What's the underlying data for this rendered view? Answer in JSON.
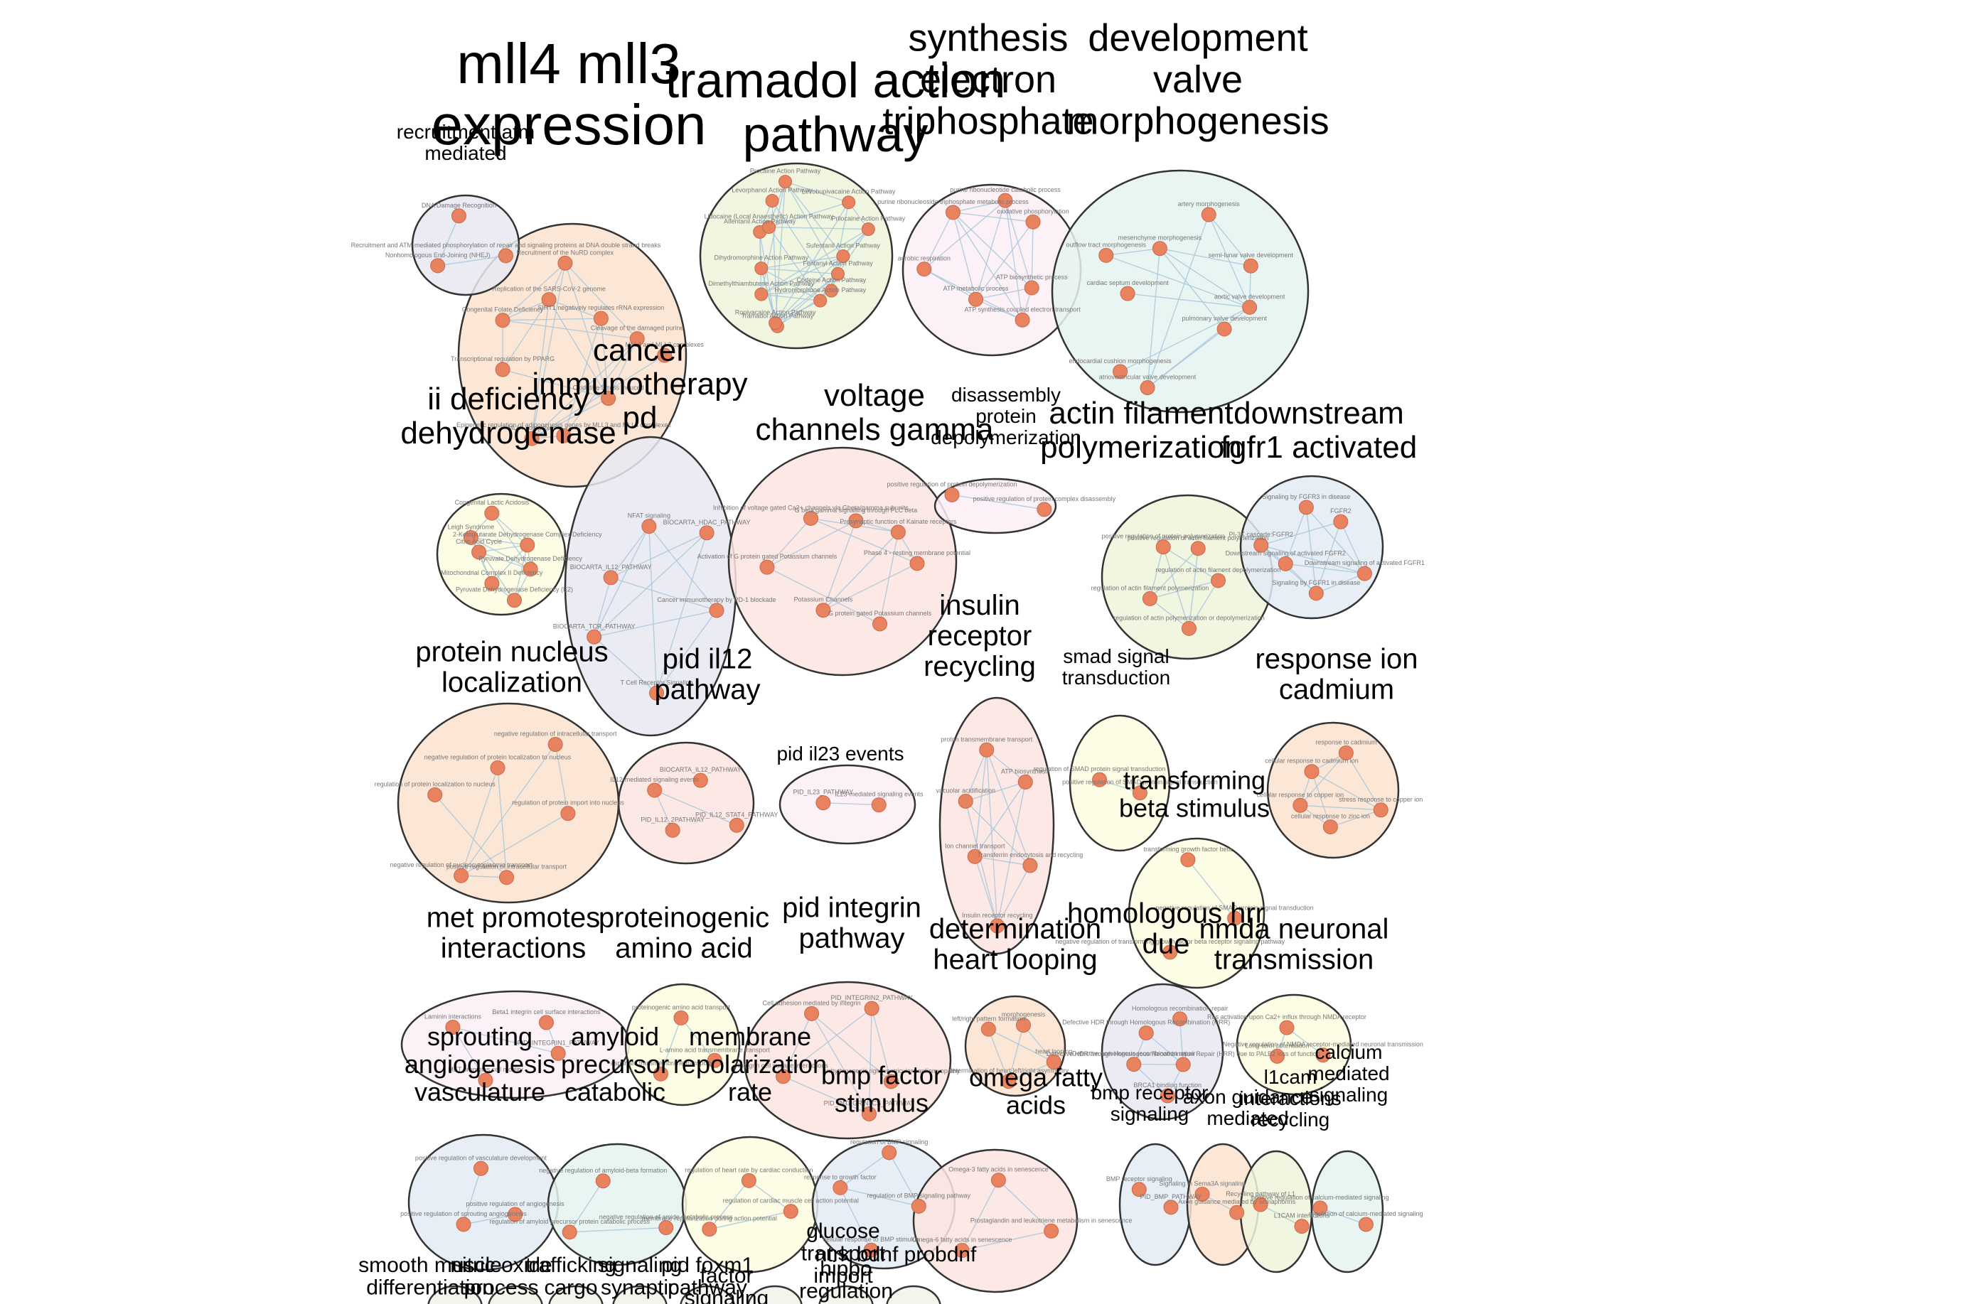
{
  "clusters": [
    {
      "title": [
        "mll4 mll3",
        "expression"
      ],
      "nodes": [
        "MLL4 and MLL3 complexes",
        "Oxidative Stress Induced",
        "Epigenetic regulation of adipogenesis genes by MLL3 and MLL4 complexes",
        "MLL4 complexes",
        "Transcriptional regulation by PPARG",
        "Congenital Folate Deficiency",
        "Replication of the SARS-CoV-2 genome",
        "Recruitment of the NuRD complex",
        "SIRT1 negatively regulates rRNA expression",
        "Cleavage of the damaged purine"
      ],
      "fill": "#fbe3cf"
    },
    {
      "title": [
        "recruitment atm",
        "mediated"
      ],
      "nodes": [
        "Recruitment and ATM-mediated phosphorylation of repair and signaling proteins at DNA double strand breaks",
        "Nonhomologous End-Joining (NHEJ)",
        "DNA Damage Recognition"
      ],
      "fill": "#e8e7f2"
    },
    {
      "title": [
        "tramadol action",
        "pathway"
      ],
      "nodes": [
        "Fentanyl Action Pathway",
        "Codeine Action Pathway",
        "Hydromorphone Action Pathway",
        "Tramadol Action Pathway",
        "Ropivacaine Action Pathway",
        "Dimethylthiambutene Action Pathway",
        "Dihydromorphine Action Pathway",
        "Alfentanil Action Pathway",
        "Lidocaine (Local Anaesthetic) Action Pathway",
        "Levorphanol Action Pathway",
        "Procaine Action Pathway",
        "Levobupivacaine Action Pathway",
        "Prilocaine Action Pathway",
        "Sufentanil Action Pathway"
      ],
      "fill": "#eef5dc"
    },
    {
      "title": [
        "synthesis",
        "electron",
        "triphosphate"
      ],
      "nodes": [
        "ATP biosynthetic process",
        "ATP synthesis coupled electron transport",
        "ATP metabolic process",
        "aerobic respiration",
        "purine ribonucleoside triphosphate metabolic process",
        "purine ribonucleotide catabolic process",
        "oxidative phosphorylation"
      ],
      "fill": "#fbeef4"
    },
    {
      "title": [
        "development",
        "valve",
        "morphogenesis"
      ],
      "nodes": [
        "aortic valve development",
        "pulmonary valve development",
        "atrioventricular valve development",
        "endocardial cushion morphogenesis",
        "cardiac septum development",
        "outflow tract morphogenesis",
        "mesenchyme morphogenesis",
        "artery morphogenesis",
        "semi-lunar valve development"
      ],
      "fill": "#e5f3f1"
    },
    {
      "title": [
        "cancer",
        "immunotherapy",
        "pd"
      ],
      "nodes": [
        "Cancer immunotherapy by PD-1 blockade",
        "T Cell Receptor Signaling",
        "BIOCARTA_TCR_PATHWAY",
        "BIOCARTA_IL12_PATHWAY",
        "NFAT signaling",
        "BIOCARTA_HDAC_PATHWAY"
      ],
      "fill": "#e8e7f2"
    },
    {
      "title": [
        "ii deficiency",
        "dehydrogenase"
      ],
      "nodes": [
        "Pyruvate Dehydrogenase Deficiency",
        "Pyruvate Dehydrogenase Deficiency (E2)",
        "Mitochondrial Complex II Deficiency",
        "Citric Acid Cycle",
        "Leigh Syndrome",
        "Congenital Lactic Acidosis",
        "2-Ketoglutarate Dehydrogenase Complex Deficiency"
      ],
      "fill": "#fdfbdf"
    },
    {
      "title": [
        "voltage",
        "channels gamma"
      ],
      "nodes": [
        "Phase 4 - resting membrane potential",
        "G protein gated Potassium channels",
        "Potassium Channels",
        "Activation of G protein gated Potassium channels",
        "Inhibition of voltage gated Ca2+ channels via Gbeta/gamma subunits",
        "G beta:gamma signalling through PLC beta",
        "Presynaptic function of Kainate receptors"
      ],
      "fill": "#fce4e0"
    },
    {
      "title": [
        "disassembly",
        "protein",
        "depolymerization"
      ],
      "nodes": [
        "positive regulation of protein complex disassembly",
        "positive regulation of protein depolymerization"
      ],
      "fill": "#fbeef4"
    },
    {
      "title": [
        "actin filament",
        "polymerization"
      ],
      "nodes": [
        "regulation of actin filament depolymerization",
        "regulation of actin polymerization or depolymerization",
        "regulation of actin filament polymerization",
        "positive regulation of protein polymerization",
        "positive regulation of actin filament polymerization"
      ],
      "fill": "#eef5dc"
    },
    {
      "title": [
        "downstream",
        "fgfr1 activated"
      ],
      "nodes": [
        "Downstream signaling of activated FGFR1",
        "Signaling by FGFR1 in disease",
        "Downstream signaling of activated FGFR2",
        "PI-3K cascade:FGFR2",
        "Signaling by FGFR3 in disease",
        "FGFR2"
      ],
      "fill": "#e3ebf4"
    },
    {
      "title": [
        "protein nucleus",
        "localization"
      ],
      "nodes": [
        "regulation of protein import into nucleus",
        "positive regulation of intracellular transport",
        "negative regulation of nucleocytoplasmic transport",
        "regulation of protein localization to nucleus",
        "negative regulation of protein localization to nucleus",
        "negative regulation of intracellular transport"
      ],
      "fill": "#fbe3cf"
    },
    {
      "title": [
        "pid il12",
        "pathway"
      ],
      "nodes": [
        "PID_IL12_STAT4_PATHWAY",
        "PID_IL12_2PATHWAY",
        "IL12-mediated signaling events",
        "BIOCARTA_IL12_PATHWAY"
      ],
      "fill": "#fce4e0"
    },
    {
      "title": [
        "pid il23 events"
      ],
      "nodes": [
        "IL23-mediated signaling events",
        "PID_IL23_PATHWAY"
      ],
      "fill": "#fbeef4"
    },
    {
      "title": [
        "insulin",
        "receptor",
        "recycling"
      ],
      "nodes": [
        "Transferrin endocytosis and recycling",
        "Insulin receptor recycling",
        "Ion channel transport",
        "vacuolar acidification",
        "proton transmembrane transport",
        "ATP biosynthesis"
      ],
      "fill": "#fce4e0"
    },
    {
      "title": [
        "smad signal",
        "transduction"
      ],
      "nodes": [
        "positive regulation of SMAD protein signal transduction",
        "regulation of SMAD protein signal transduction"
      ],
      "fill": "#fdfbdf"
    },
    {
      "title": [
        "response ion",
        "cadmium"
      ],
      "nodes": [
        "stress response to copper ion",
        "cellular response to zinc ion",
        "cellular response to copper ion",
        "cellular response to cadmium ion",
        "response to cadmium"
      ],
      "fill": "#fbe3cf"
    },
    {
      "title": [
        "transforming",
        "beta stimulus"
      ],
      "nodes": [
        "negative regulation of SMAD protein signal transduction",
        "negative regulation of transforming growth factor beta receptor signaling pathway",
        "transforming growth factor beta"
      ],
      "fill": "#fdfbdf"
    },
    {
      "title": [
        "met promotes",
        "interactions"
      ],
      "nodes": [
        "PID_INTEGRIN1_PATHWAY",
        "MET promotes cell motility",
        "Laminin interactions",
        "Beta1 integrin cell surface interactions"
      ],
      "fill": "#fbeef4"
    },
    {
      "title": [
        "proteinogenic",
        "amino acid"
      ],
      "nodes": [
        "L-amino acid transmembrane transport",
        "aspartate transmembrane transport",
        "proteinogenic amino acid transport"
      ],
      "fill": "#fdfbdf"
    },
    {
      "title": [
        "pid integrin",
        "pathway"
      ],
      "nodes": [
        "Arrhythmogenic right ventricular cardiomyopathy",
        "PID_INTEGRIN_CS_PATHWAY",
        "Integrin cell surface interactions",
        "Cell adhesion mediated by integrin",
        "PID_INTEGRIN2_PATHWAY"
      ],
      "fill": "#fce4e0"
    },
    {
      "title": [
        "determination",
        "heart looping"
      ],
      "nodes": [
        "heart looping",
        "determination of heart left/right asymmetry",
        "left/right pattern formation",
        "morphogenesis"
      ],
      "fill": "#fbe3cf"
    },
    {
      "title": [
        "homologous hrr",
        "due"
      ],
      "nodes": [
        "Defective HDR through Homologous Recombination Repair (HRR) due to PALB2 loss of function",
        "BRCA1 binding function",
        "Defective homologous recombination repair",
        "Defective HDR through Homologous Recombination (HRR)",
        "Homologous recombination repair"
      ],
      "fill": "#e8e7f2"
    },
    {
      "title": [
        "nmda neuronal",
        "transmission"
      ],
      "nodes": [
        "Negative regulation of NMDA receptor-mediated neuronal transmission",
        "Long-term potentiation",
        "Ras activation upon Ca2+ influx through NMDA receptor"
      ],
      "fill": "#fdfbdf"
    },
    {
      "title": [
        "sprouting",
        "angiogenesis",
        "vasculature"
      ],
      "nodes": [
        "positive regulation of angiogenesis",
        "positive regulation of sprouting angiogenesis",
        "positive regulation of vasculature development"
      ],
      "fill": "#e3ebf4"
    },
    {
      "title": [
        "amyloid",
        "precursor",
        "catabolic"
      ],
      "nodes": [
        "negative regulation of amide metabolic process",
        "regulation of amyloid precursor protein catabolic process",
        "negative regulation of amyloid-beta formation"
      ],
      "fill": "#e5f3f1"
    },
    {
      "title": [
        "membrane",
        "repolarization",
        "rate"
      ],
      "nodes": [
        "regulation of cardiac muscle cell action potential",
        "membrane repolarization during action potential",
        "regulation of heart rate by cardiac conduction"
      ],
      "fill": "#fdfbdf"
    },
    {
      "title": [
        "bmp factor",
        "stimulus"
      ],
      "nodes": [
        "regulation of BMP signaling pathway",
        "cellular response to BMP stimulus",
        "response to growth factor",
        "regulation of BMP signaling"
      ],
      "fill": "#e3ebf4"
    },
    {
      "title": [
        "omega fatty",
        "acids"
      ],
      "nodes": [
        "Prostaglandin and leukotriene metabolism in senescence",
        "Omega-6 fatty acids in senescence",
        "Omega-3 fatty acids in senescence"
      ],
      "fill": "#fce4e0"
    },
    {
      "title": [
        "bmp receptor",
        "signaling"
      ],
      "nodes": [
        "PID_BMP_PATHWAY",
        "BMP receptor signaling"
      ],
      "fill": "#e3ebf4"
    },
    {
      "title": [
        "axon guidance",
        "mediated"
      ],
      "nodes": [
        "Axon guidance mediated by semaphorins",
        "Signaling in Sema3A signaling"
      ],
      "fill": "#fbe3cf"
    },
    {
      "title": [
        "l1cam",
        "interactions",
        "recycling"
      ],
      "nodes": [
        "L1CAM interactions",
        "Recycling pathway of L1"
      ],
      "fill": "#eef5dc"
    },
    {
      "title": [
        "calcium",
        "mediated",
        "signaling"
      ],
      "nodes": [
        "regulation of calcium-mediated signaling",
        "positive regulation of calcium-mediated signaling"
      ],
      "fill": "#e5f3f1"
    }
  ],
  "bottom_labels": [
    [
      "smooth muscle",
      "differentiation"
    ],
    [
      "nitric oxide",
      "process"
    ],
    [
      "trafficking",
      "cargo"
    ],
    [
      "signaling",
      "synaptic"
    ],
    [
      "pid foxm1",
      "pathway"
    ],
    [
      "factor",
      "signaling"
    ],
    [
      "glucose",
      "transport",
      "import"
    ],
    [
      "hippo",
      "regulation"
    ],
    [
      "ntrk bdnf probdnf",
      ""
    ]
  ]
}
